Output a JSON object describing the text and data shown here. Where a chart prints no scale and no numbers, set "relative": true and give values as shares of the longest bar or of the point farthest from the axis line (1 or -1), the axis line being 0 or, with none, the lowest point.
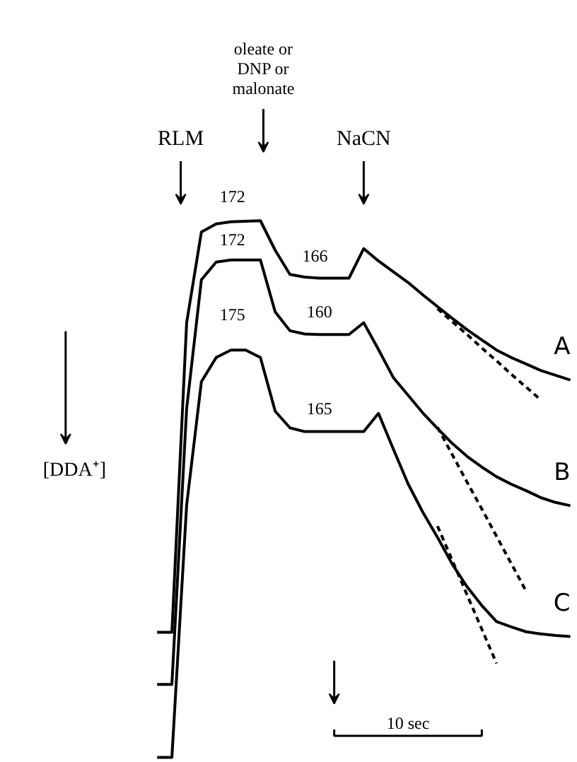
{
  "chart_data": {
    "type": "line",
    "relative": true,
    "categories": [
      null,
      null,
      null,
      null,
      null,
      null,
      null,
      null,
      null,
      null,
      null,
      null,
      null,
      null,
      null,
      null,
      null,
      null,
      null,
      null,
      null,
      null,
      null,
      null,
      null,
      null,
      null,
      null,
      null
    ],
    "series": [
      {
        "name": "A",
        "color": "#000000",
        "line_style": "solid",
        "values": [
          0.233,
          0.233,
          0.81,
          0.979,
          0.994,
          0.998,
          0.999,
          1.0,
          0.945,
          0.9,
          0.895,
          0.893,
          0.893,
          0.893,
          0.948,
          0.925,
          0.905,
          0.885,
          0.862,
          0.84,
          0.818,
          0.797,
          0.778,
          0.759,
          0.745,
          0.733,
          0.721,
          0.712,
          0.703
        ]
      },
      {
        "name": "B",
        "color": "#000000",
        "line_style": "solid",
        "values": [
          0.136,
          0.136,
          0.65,
          0.89,
          0.923,
          0.927,
          0.927,
          0.927,
          0.83,
          0.795,
          0.789,
          0.788,
          0.788,
          0.788,
          0.81,
          0.76,
          0.708,
          0.675,
          0.642,
          0.613,
          0.585,
          0.561,
          0.541,
          0.523,
          0.509,
          0.497,
          0.484,
          0.475,
          0.469
        ]
      },
      {
        "name": "C",
        "color": "#000000",
        "line_style": "solid",
        "values": [
          0,
          0,
          0.47,
          0.7,
          0.745,
          0.759,
          0.759,
          0.745,
          0.645,
          0.614,
          0.607,
          0.607,
          0.607,
          0.607,
          0.607,
          0.641,
          0.575,
          0.51,
          0.457,
          0.41,
          0.36,
          0.318,
          0.283,
          0.253,
          0.243,
          0.234,
          0.23,
          0.227,
          0.225
        ]
      },
      {
        "color": "#000000",
        "line_style": "dashed",
        "values": [
          null,
          null,
          null,
          null,
          null,
          null,
          null,
          null,
          null,
          null,
          null,
          null,
          null,
          null,
          null,
          null,
          null,
          null,
          null,
          0.836,
          0.812,
          0.788,
          0.763,
          0.739,
          0.714,
          0.69,
          0.666,
          null,
          null
        ]
      },
      {
        "color": "#000000",
        "line_style": "dashed",
        "values": [
          null,
          null,
          null,
          null,
          null,
          null,
          null,
          null,
          null,
          null,
          null,
          null,
          null,
          null,
          null,
          null,
          null,
          null,
          null,
          0.615,
          0.564,
          0.513,
          0.463,
          0.412,
          0.361,
          0.31,
          null,
          null,
          null
        ]
      },
      {
        "color": "#000000",
        "line_style": "dashed",
        "values": [
          null,
          null,
          null,
          null,
          null,
          null,
          null,
          null,
          null,
          null,
          null,
          null,
          null,
          null,
          null,
          null,
          null,
          null,
          null,
          0.431,
          0.367,
          0.303,
          0.239,
          0.175,
          null,
          null,
          null,
          null,
          null
        ]
      }
    ],
    "annotations": [
      "RLM",
      "oleate or\nDNP or\nmalonate",
      "NaCN",
      "[DDA⁺]",
      "10 sec",
      "172",
      "172",
      "175",
      "166",
      "160",
      "165"
    ]
  }
}
